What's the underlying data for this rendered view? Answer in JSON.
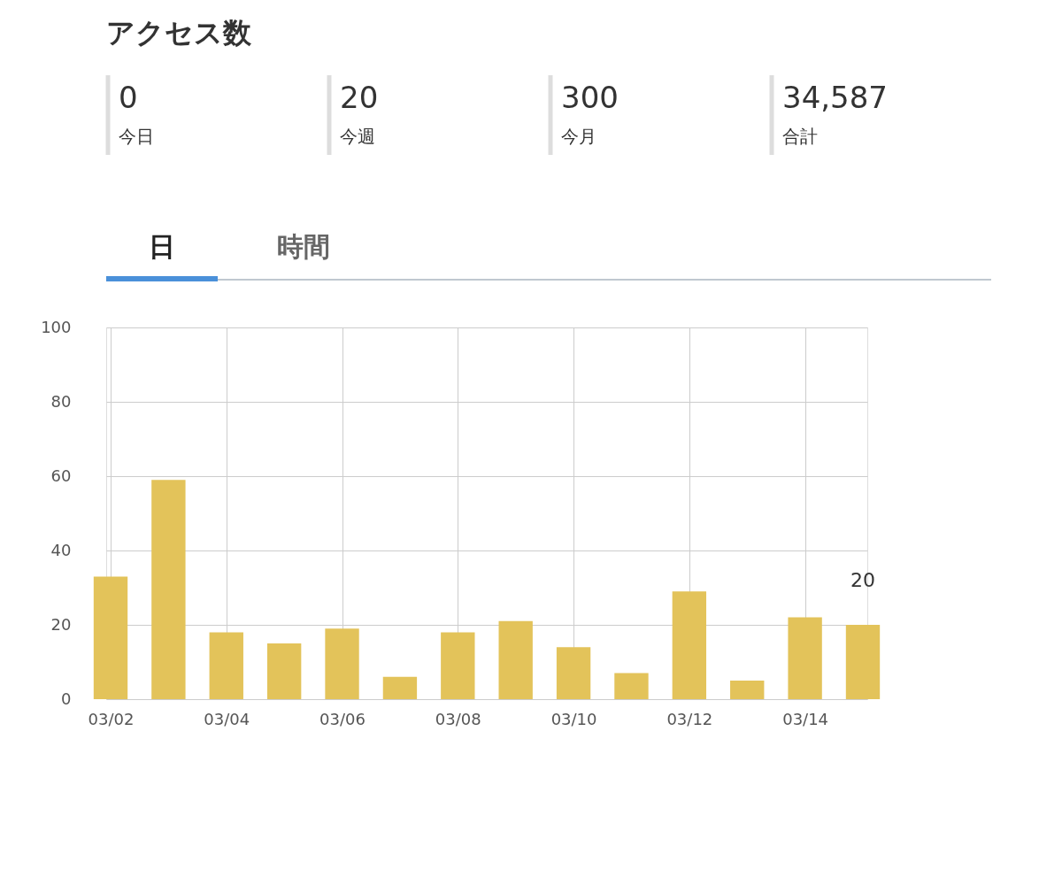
{
  "chart_data": [
    {
      "type": "other",
      "title": "アクセス数",
      "annotations": [
        "0",
        "今日",
        "20",
        "今週",
        "300",
        "今月",
        "34,587",
        "合計",
        "日",
        "時間"
      ]
    },
    {
      "type": "bar",
      "categories": [
        "03/02",
        null,
        "03/04",
        null,
        "03/06",
        null,
        "03/08",
        null,
        "03/10",
        null,
        "03/12",
        null,
        "03/14",
        null
      ],
      "values": [
        33,
        59,
        18,
        15,
        19,
        6,
        18,
        21,
        14,
        7,
        29,
        5,
        22,
        20
      ],
      "value_labels": [
        null,
        null,
        null,
        null,
        null,
        null,
        null,
        null,
        null,
        null,
        null,
        null,
        null,
        "20"
      ],
      "color": "#e3c35a",
      "ylim": [
        0,
        100
      ],
      "yticks": [
        0,
        20,
        40,
        60,
        80,
        100
      ],
      "grid": true
    }
  ]
}
